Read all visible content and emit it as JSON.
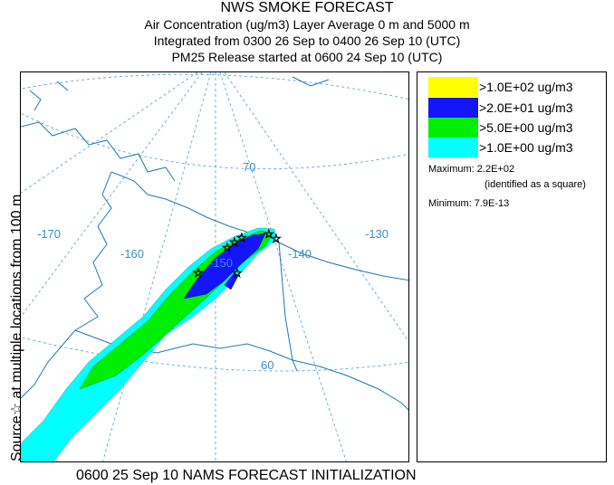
{
  "header": {
    "title": "NWS SMOKE FORECAST",
    "line2": "Air Concentration (ug/m3) Layer Average    0 m and  5000 m",
    "line3": "Integrated from 0300 26 Sep to 0400 26 Sep 10 (UTC)",
    "line4": "PM25 Release started at 0600 24 Sep 10 (UTC)"
  },
  "side_label": "Source☆  at multiple locations  from  100 m",
  "map": {
    "meridian_labels": [
      "-170",
      "-160",
      "-150",
      "-140",
      "-130"
    ],
    "parallel_labels": [
      "70",
      "60"
    ],
    "colors": {
      "land_outline": "#1f78b4",
      "graticule": "#4a9fd8",
      "level_1": "#00ffff",
      "level_2": "#00ee00",
      "level_3": "#1414ff",
      "level_4": "#ffff00"
    }
  },
  "legend": {
    "items": [
      {
        "label": ">1.0E+02 ug/m3",
        "color": "#ffff00"
      },
      {
        "label": ">2.0E+01 ug/m3",
        "color": "#1414ff"
      },
      {
        "label": ">5.0E+00 ug/m3",
        "color": "#00ee00"
      },
      {
        "label": ">1.0E+00 ug/m3",
        "color": "#00ffff"
      }
    ],
    "maximum": "Maximum: 2.2E+02",
    "maximum_note": "(identified as a square)",
    "minimum": "Minimum: 7.9E-13"
  },
  "footer": "0600 25 Sep 10 NAMS FORECAST INITIALIZATION"
}
